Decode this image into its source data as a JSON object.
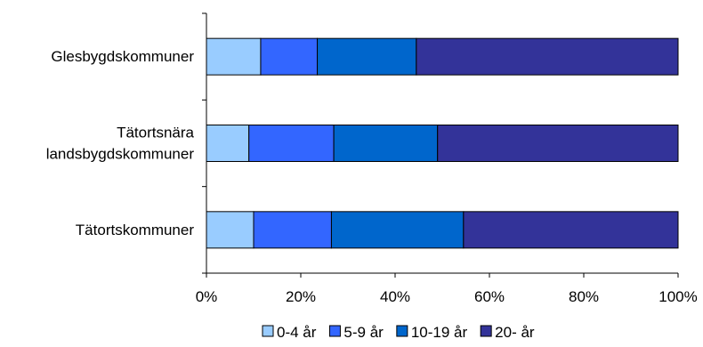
{
  "chart_data": {
    "type": "bar",
    "orientation": "horizontal",
    "stacked": "percent",
    "categories": [
      [
        "Glesbygdskommuner"
      ],
      [
        "Tätortsnära",
        "landsbygdskommuner"
      ],
      [
        "Tätortskommuner"
      ]
    ],
    "series": [
      {
        "name": "0-4 år",
        "color": "#99CCFF",
        "values": [
          11.5,
          9.0,
          10.0
        ]
      },
      {
        "name": "5-9 år",
        "color": "#3366FF",
        "values": [
          12.0,
          18.0,
          16.5
        ]
      },
      {
        "name": "10-19 år",
        "color": "#0066CC",
        "values": [
          21.0,
          22.0,
          28.0
        ]
      },
      {
        "name": "20- år",
        "color": "#333399",
        "values": [
          55.5,
          51.0,
          45.5
        ]
      }
    ],
    "xlim": [
      0,
      100
    ],
    "xticks": [
      "0%",
      "20%",
      "40%",
      "60%",
      "80%",
      "100%"
    ],
    "grid": false,
    "legend_position": "bottom"
  }
}
